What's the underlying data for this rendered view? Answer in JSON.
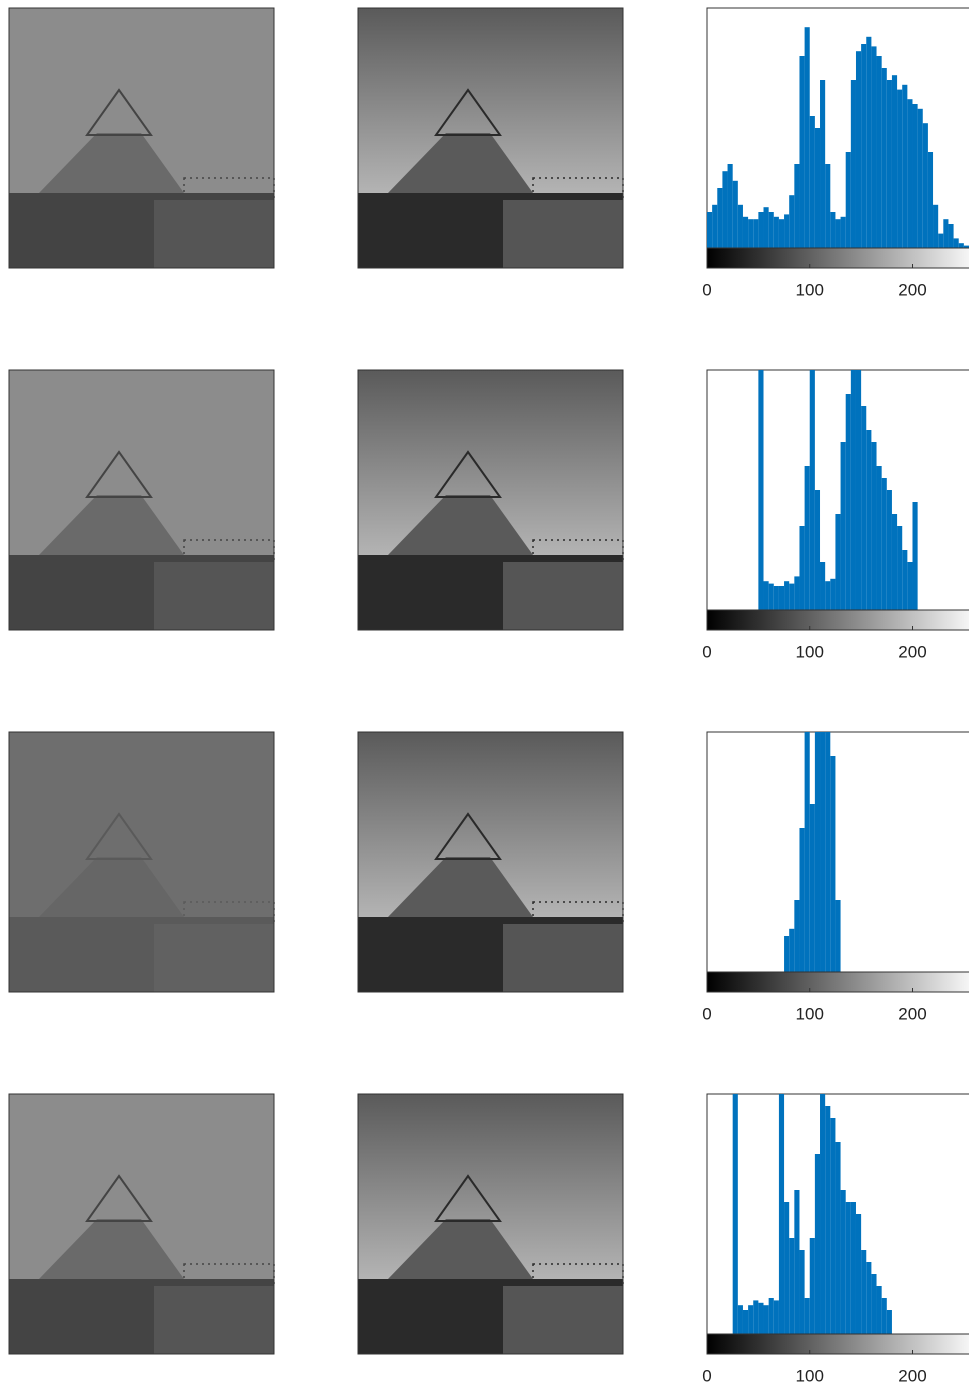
{
  "chart_data": [
    {
      "type": "histogram",
      "color": "#0072bd",
      "xlim": [
        0,
        255
      ],
      "ylim": [
        0,
        100
      ],
      "xticks": [
        0,
        100,
        200
      ],
      "bins": [
        0,
        5,
        10,
        15,
        20,
        25,
        30,
        35,
        40,
        45,
        50,
        55,
        60,
        65,
        70,
        75,
        80,
        85,
        90,
        95,
        100,
        105,
        110,
        115,
        120,
        125,
        130,
        135,
        140,
        145,
        150,
        155,
        160,
        165,
        170,
        175,
        180,
        185,
        190,
        195,
        200,
        205,
        210,
        215,
        220,
        225,
        230,
        235,
        240,
        245,
        250,
        255
      ],
      "values": [
        15,
        18,
        25,
        32,
        35,
        28,
        18,
        13,
        12,
        12,
        15,
        17,
        15,
        13,
        12,
        14,
        22,
        35,
        80,
        92,
        55,
        50,
        70,
        35,
        15,
        12,
        13,
        40,
        70,
        82,
        85,
        88,
        84,
        80,
        75,
        70,
        72,
        66,
        68,
        62,
        60,
        58,
        52,
        40,
        18,
        6,
        12,
        10,
        4,
        2,
        1
      ]
    },
    {
      "type": "histogram",
      "color": "#0072bd",
      "xlim": [
        0,
        255
      ],
      "ylim": [
        0,
        100
      ],
      "xticks": [
        0,
        100,
        200
      ],
      "bins": [
        0,
        5,
        10,
        15,
        20,
        25,
        30,
        35,
        40,
        45,
        50,
        55,
        60,
        65,
        70,
        75,
        80,
        85,
        90,
        95,
        100,
        105,
        110,
        115,
        120,
        125,
        130,
        135,
        140,
        145,
        150,
        155,
        160,
        165,
        170,
        175,
        180,
        185,
        190,
        195,
        200,
        205,
        210,
        215,
        220,
        225,
        230,
        235,
        240,
        245,
        250,
        255
      ],
      "values": [
        0,
        0,
        0,
        0,
        0,
        0,
        0,
        0,
        0,
        0,
        100,
        12,
        11,
        10,
        10,
        12,
        11,
        14,
        35,
        60,
        100,
        50,
        20,
        12,
        13,
        40,
        70,
        90,
        100,
        100,
        85,
        75,
        70,
        60,
        55,
        50,
        40,
        35,
        25,
        20,
        45,
        0,
        0,
        0,
        0,
        0,
        0,
        0,
        0,
        0,
        0
      ]
    },
    {
      "type": "histogram",
      "color": "#0072bd",
      "xlim": [
        0,
        255
      ],
      "ylim": [
        0,
        100
      ],
      "xticks": [
        0,
        100,
        200
      ],
      "bins": [
        0,
        5,
        10,
        15,
        20,
        25,
        30,
        35,
        40,
        45,
        50,
        55,
        60,
        65,
        70,
        75,
        80,
        85,
        90,
        95,
        100,
        105,
        110,
        115,
        120,
        125,
        130,
        135,
        140,
        145,
        150,
        155,
        160,
        165,
        170,
        175,
        180,
        185,
        190,
        195,
        200,
        205,
        210,
        215,
        220,
        225,
        230,
        235,
        240,
        245,
        250,
        255
      ],
      "values": [
        0,
        0,
        0,
        0,
        0,
        0,
        0,
        0,
        0,
        0,
        0,
        0,
        0,
        0,
        0,
        15,
        18,
        30,
        60,
        100,
        70,
        100,
        100,
        100,
        90,
        30,
        0,
        0,
        0,
        0,
        0,
        0,
        0,
        0,
        0,
        0,
        0,
        0,
        0,
        0,
        0,
        0,
        0,
        0,
        0,
        0,
        0,
        0,
        0,
        0,
        0
      ]
    },
    {
      "type": "histogram",
      "color": "#0072bd",
      "xlim": [
        0,
        255
      ],
      "ylim": [
        0,
        100
      ],
      "xticks": [
        0,
        100,
        200
      ],
      "bins": [
        0,
        5,
        10,
        15,
        20,
        25,
        30,
        35,
        40,
        45,
        50,
        55,
        60,
        65,
        70,
        75,
        80,
        85,
        90,
        95,
        100,
        105,
        110,
        115,
        120,
        125,
        130,
        135,
        140,
        145,
        150,
        155,
        160,
        165,
        170,
        175,
        180,
        185,
        190,
        195,
        200,
        205,
        210,
        215,
        220,
        225,
        230,
        235,
        240,
        245,
        250,
        255
      ],
      "values": [
        0,
        0,
        0,
        0,
        0,
        100,
        12,
        10,
        12,
        14,
        13,
        12,
        15,
        14,
        100,
        55,
        40,
        60,
        35,
        15,
        40,
        75,
        100,
        95,
        90,
        80,
        60,
        55,
        55,
        50,
        35,
        30,
        25,
        20,
        15,
        10,
        0,
        0,
        0,
        0,
        0,
        0,
        0,
        0,
        0,
        0,
        0,
        0,
        0,
        0,
        0
      ]
    }
  ]
}
